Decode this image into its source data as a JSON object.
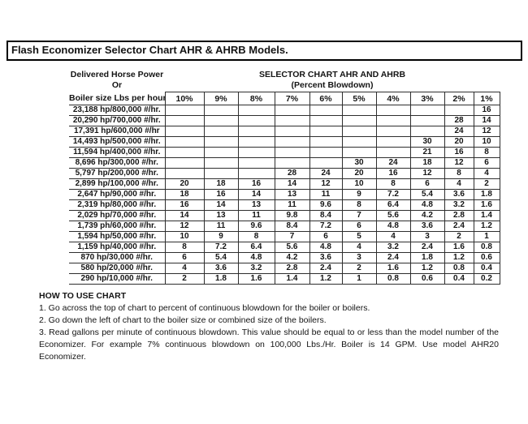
{
  "title": "Flash Economizer Selector Chart AHR & AHRB Models.",
  "left_header": {
    "line1": "Delivered Horse Power",
    "line2": "Or",
    "line3": "Boiler size Lbs per hour"
  },
  "right_header": {
    "line1": "SELECTOR CHART AHR AND AHRB",
    "line2": "(Percent Blowdown)"
  },
  "table": {
    "columns": [
      "10%",
      "9%",
      "8%",
      "7%",
      "6%",
      "5%",
      "4%",
      "3%",
      "2%",
      "1%"
    ],
    "rows": [
      {
        "label": "23,188 hp/800,000 #/hr.",
        "values": [
          "",
          "",
          "",
          "",
          "",
          "",
          "",
          "",
          "",
          "16"
        ]
      },
      {
        "label": "20,290 hp/700,000 #/hr.",
        "values": [
          "",
          "",
          "",
          "",
          "",
          "",
          "",
          "",
          "28",
          "14"
        ]
      },
      {
        "label": "17,391 hp/600,000 #/hr",
        "values": [
          "",
          "",
          "",
          "",
          "",
          "",
          "",
          "",
          "24",
          "12"
        ]
      },
      {
        "label": "14,493 hp/500,000 #/hr.",
        "values": [
          "",
          "",
          "",
          "",
          "",
          "",
          "",
          "30",
          "20",
          "10"
        ]
      },
      {
        "label": "11,594 hp/400,000 #/hr.",
        "values": [
          "",
          "",
          "",
          "",
          "",
          "",
          "",
          "21",
          "16",
          "8"
        ]
      },
      {
        "label": "8,696 hp/300,000 #/hr.",
        "values": [
          "",
          "",
          "",
          "",
          "",
          "30",
          "24",
          "18",
          "12",
          "6"
        ]
      },
      {
        "label": "5,797 hp/200,000 #/hr.",
        "values": [
          "",
          "",
          "",
          "28",
          "24",
          "20",
          "16",
          "12",
          "8",
          "4"
        ]
      },
      {
        "label": "2,899 hp/100,000 #/hr.",
        "values": [
          "20",
          "18",
          "16",
          "14",
          "12",
          "10",
          "8",
          "6",
          "4",
          "2"
        ]
      },
      {
        "label": "2,647 hp/90,000 #/hr.",
        "values": [
          "18",
          "16",
          "14",
          "13",
          "11",
          "9",
          "7.2",
          "5.4",
          "3.6",
          "1.8"
        ]
      },
      {
        "label": "2,319 hp/80,000 #/hr.",
        "values": [
          "16",
          "14",
          "13",
          "11",
          "9.6",
          "8",
          "6.4",
          "4.8",
          "3.2",
          "1.6"
        ]
      },
      {
        "label": "2,029 hp/70,000 #/hr.",
        "values": [
          "14",
          "13",
          "11",
          "9.8",
          "8.4",
          "7",
          "5.6",
          "4.2",
          "2.8",
          "1.4"
        ]
      },
      {
        "label": "1,739 ph/60,000 #/hr.",
        "values": [
          "12",
          "11",
          "9.6",
          "8.4",
          "7.2",
          "6",
          "4.8",
          "3.6",
          "2.4",
          "1.2"
        ]
      },
      {
        "label": "1,594 hp/50,000 #/hr.",
        "values": [
          "10",
          "9",
          "8",
          "7",
          "6",
          "5",
          "4",
          "3",
          "2",
          "1"
        ]
      },
      {
        "label": "1,159 hp/40,000 #/hr.",
        "values": [
          "8",
          "7.2",
          "6.4",
          "5.6",
          "4.8",
          "4",
          "3.2",
          "2.4",
          "1.6",
          "0.8"
        ]
      },
      {
        "label": "870 hp/30,000 #/hr.",
        "values": [
          "6",
          "5.4",
          "4.8",
          "4.2",
          "3.6",
          "3",
          "2.4",
          "1.8",
          "1.2",
          "0.6"
        ]
      },
      {
        "label": "580 hp/20,000 #/hr.",
        "values": [
          "4",
          "3.6",
          "3.2",
          "2.8",
          "2.4",
          "2",
          "1.6",
          "1.2",
          "0.8",
          "0.4"
        ]
      },
      {
        "label": "290 hp/10,000 #/hr.",
        "values": [
          "2",
          "1.8",
          "1.6",
          "1.4",
          "1.2",
          "1",
          "0.8",
          "0.6",
          "0.4",
          "0.2"
        ]
      }
    ]
  },
  "instructions": {
    "heading": "HOW TO USE CHART",
    "steps": [
      "1. Go across the top of chart to percent of continuous blowdown for the boiler or boilers.",
      "2. Go down the left of chart to the boiler size or combined size of the boilers.",
      "3. Read gallons per minute of continuous blowdown. This value should be equal to or less than the model number of the Economizer. For example 7% continuous blowdown on 100,000 Lbs./Hr. Boiler is 14 GPM. Use model AHR20 Economizer."
    ]
  }
}
